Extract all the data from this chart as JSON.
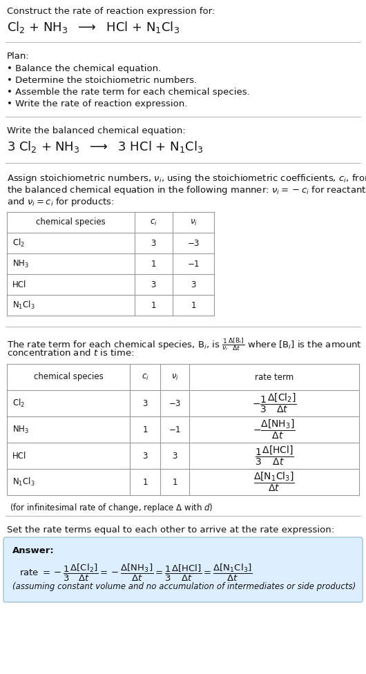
{
  "title_line1": "Construct the rate of reaction expression for:",
  "title_line2_math": "Cl$_2$ + NH$_3$  $\\longrightarrow$  HCl + N$_1$Cl$_3$",
  "plan_header": "Plan:",
  "plan_items": [
    "• Balance the chemical equation.",
    "• Determine the stoichiometric numbers.",
    "• Assemble the rate term for each chemical species.",
    "• Write the rate of reaction expression."
  ],
  "balanced_header": "Write the balanced chemical equation:",
  "balanced_eq_math": "3 Cl$_2$ + NH$_3$  $\\longrightarrow$  3 HCl + N$_1$Cl$_3$",
  "stoich_intro_lines": [
    "Assign stoichiometric numbers, $\\nu_i$, using the stoichiometric coefficients, $c_i$, from",
    "the balanced chemical equation in the following manner: $\\nu_i = -c_i$ for reactants",
    "and $\\nu_i = c_i$ for products:"
  ],
  "table1_col_headers": [
    "chemical species",
    "$c_i$",
    "$\\nu_i$"
  ],
  "table1_rows": [
    [
      "Cl$_2$",
      "3",
      "$-3$"
    ],
    [
      "NH$_3$",
      "1",
      "$-1$"
    ],
    [
      "HCl",
      "3",
      "3"
    ],
    [
      "N$_1$Cl$_3$",
      "1",
      "1"
    ]
  ],
  "rate_intro_lines": [
    "The rate term for each chemical species, B$_i$, is $\\frac{1}{\\nu_i}\\frac{\\Delta[\\mathrm{B}_i]}{\\Delta t}$ where [B$_i$] is the amount",
    "concentration and $t$ is time:"
  ],
  "table2_col_headers": [
    "chemical species",
    "$c_i$",
    "$\\nu_i$",
    "rate term"
  ],
  "table2_rows": [
    [
      "Cl$_2$",
      "3",
      "$-3$",
      "$-\\dfrac{1}{3}\\dfrac{\\Delta[\\mathrm{Cl_2}]}{\\Delta t}$"
    ],
    [
      "NH$_3$",
      "1",
      "$-1$",
      "$-\\dfrac{\\Delta[\\mathrm{NH_3}]}{\\Delta t}$"
    ],
    [
      "HCl",
      "3",
      "3",
      "$\\dfrac{1}{3}\\dfrac{\\Delta[\\mathrm{HCl}]}{\\Delta t}$"
    ],
    [
      "N$_1$Cl$_3$",
      "1",
      "1",
      "$\\dfrac{\\Delta[\\mathrm{N_1Cl_3}]}{\\Delta t}$"
    ]
  ],
  "infinitesimal_note": "(for infinitesimal rate of change, replace Δ with $d$)",
  "set_equal_text": "Set the rate terms equal to each other to arrive at the rate expression:",
  "answer_label": "Answer:",
  "answer_eq": "rate $= -\\dfrac{1}{3}\\dfrac{\\Delta[\\mathrm{Cl_2}]}{\\Delta t} = -\\dfrac{\\Delta[\\mathrm{NH_3}]}{\\Delta t} = \\dfrac{1}{3}\\dfrac{\\Delta[\\mathrm{HCl}]}{\\Delta t} = \\dfrac{\\Delta[\\mathrm{N_1Cl_3}]}{\\Delta t}$",
  "answer_note": "(assuming constant volume and no accumulation of intermediates or side products)",
  "bg_color": "#ffffff",
  "answer_box_color": "#ddeeff",
  "answer_box_edge": "#aaccdd",
  "text_color": "#111111",
  "divider_color": "#bbbbbb",
  "table_border_color": "#999999"
}
